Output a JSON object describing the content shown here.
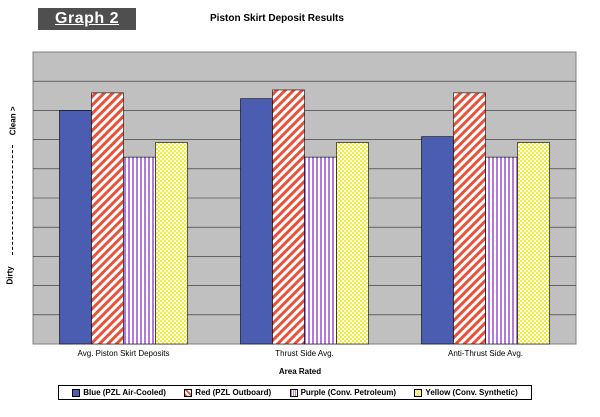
{
  "badge": "Graph 2",
  "chart_data": {
    "type": "bar",
    "title": "Piston Skirt Deposit Results",
    "xlabel": "Area Rated",
    "ylabel_low": "Dirty",
    "ylabel_high": "Clean",
    "categories": [
      "Avg. Piston Skirt Deposits",
      "Thrust Side Avg.",
      "Anti-Thrust Side Avg."
    ],
    "ylim": [
      0,
      10
    ],
    "grid": true,
    "legend_position": "bottom",
    "series": [
      {
        "name": "Blue (PZL Air-Cooled)",
        "values": [
          8.0,
          8.4,
          7.1
        ],
        "color": "#4a5db0",
        "pattern": "solid"
      },
      {
        "name": "Red (PZL Outboard)",
        "values": [
          8.6,
          8.7,
          8.6
        ],
        "color": "#e8523a",
        "pattern": "diagonal"
      },
      {
        "name": "Purple (Conv. Petroleum)",
        "values": [
          6.4,
          6.4,
          6.4
        ],
        "color": "#b07ad8",
        "pattern": "vertical"
      },
      {
        "name": "Yellow (Conv. Synthetic)",
        "values": [
          6.9,
          6.9,
          6.9
        ],
        "color": "#f5ec30",
        "pattern": "checker"
      }
    ]
  }
}
